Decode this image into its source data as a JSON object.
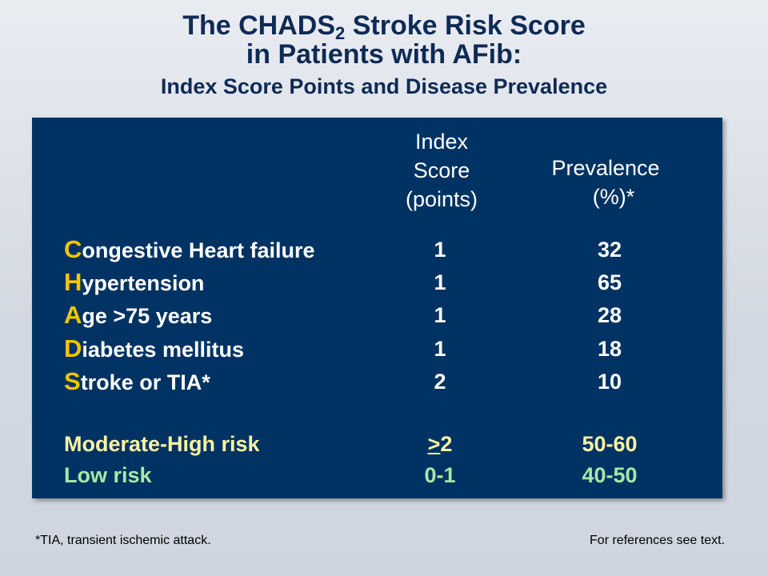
{
  "title": {
    "line1_prefix": "The CHADS",
    "line1_sub": "2",
    "line1_suffix": " Stroke Risk Score",
    "line2": "in Patients with AFib:",
    "line3": "Index Score Points and Disease Prevalence"
  },
  "table": {
    "score_header": [
      "Index",
      "Score",
      "(points)"
    ],
    "prevalence_header": [
      "Prevalence",
      "(%)*"
    ],
    "rows": [
      {
        "initial": "C",
        "rest": "ongestive Heart failure",
        "score": "1",
        "prevalence": "32"
      },
      {
        "initial": "H",
        "rest": "ypertension",
        "score": "1",
        "prevalence": "65"
      },
      {
        "initial": "A",
        "rest": "ge >75 years",
        "score": "1",
        "prevalence": "28"
      },
      {
        "initial": "D",
        "rest": "iabetes mellitus",
        "score": "1",
        "prevalence": "18"
      },
      {
        "initial": "S",
        "rest": "troke or  TIA*",
        "score": "2",
        "prevalence": "10"
      }
    ],
    "risk": [
      {
        "label": "Moderate-High risk",
        "score_symbol": ">",
        "score_value": "2",
        "prevalence": "50-60"
      },
      {
        "label": "Low risk",
        "score_value": "0-1",
        "prevalence": "40-50"
      }
    ]
  },
  "footnote": "*TIA, transient ischemic attack.",
  "references": "For references see text.",
  "colors": {
    "panel": "#003363",
    "title": "#0f2a55",
    "initial_letters": "#f5c400",
    "moderate_high": "#fbf3a0",
    "low": "#a8e6a6"
  }
}
